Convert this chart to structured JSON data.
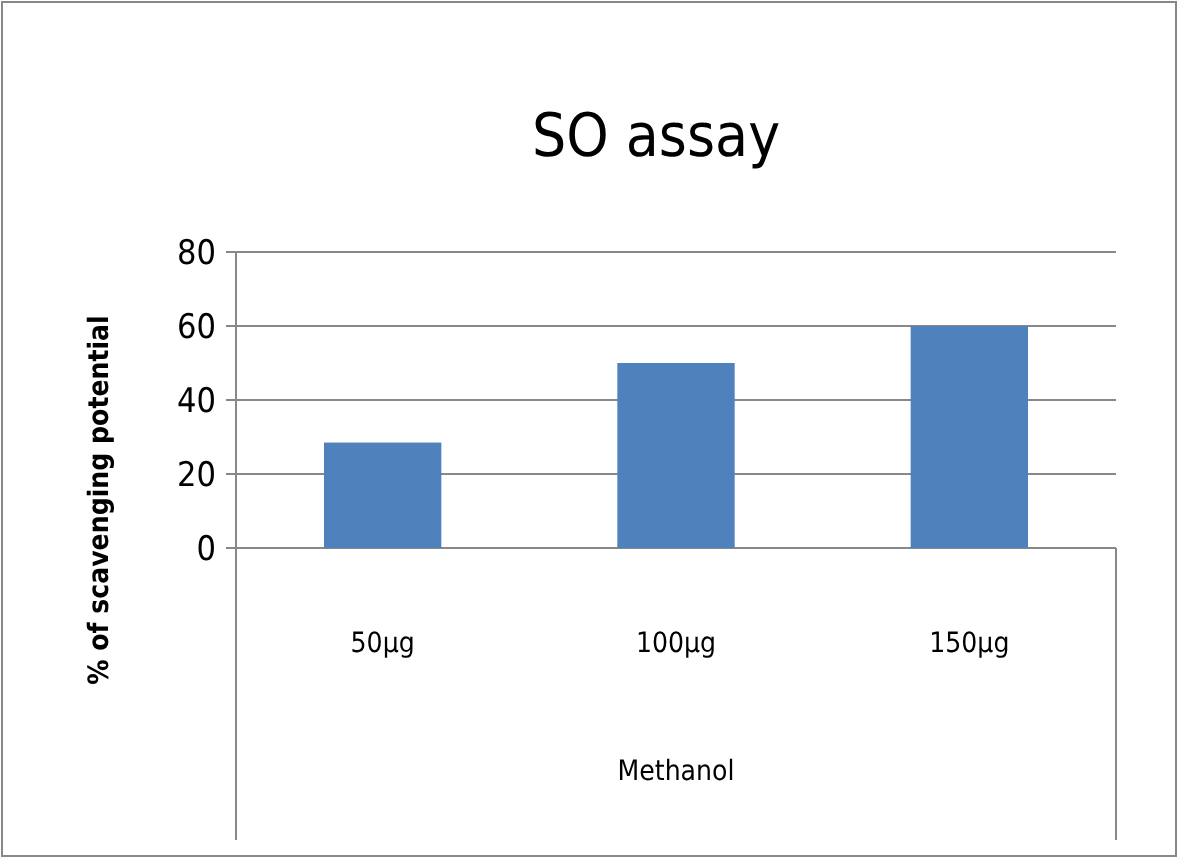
{
  "chart_data": {
    "type": "bar",
    "title": "SO assay",
    "ylabel": "% of scavenging potential",
    "xlabel": "Methanol",
    "categories": [
      "50µg",
      "100µg",
      "150µg"
    ],
    "values": [
      28.5,
      50,
      60
    ],
    "color": "#4f81bd",
    "ylim": [
      0,
      80
    ],
    "yticks": [
      0,
      20,
      40,
      60,
      80
    ],
    "grid": "y"
  }
}
